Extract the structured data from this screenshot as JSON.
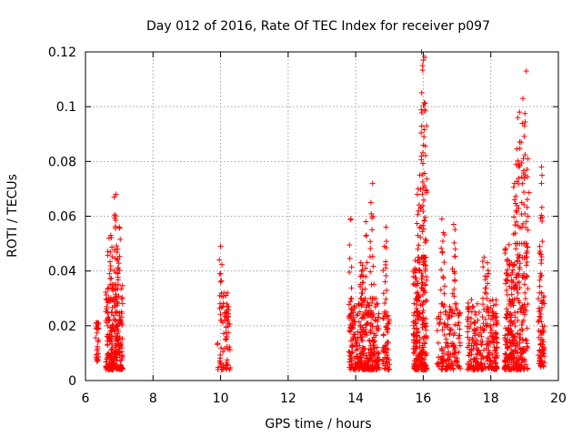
{
  "chart_data": {
    "type": "scatter",
    "title": "Day 012 of 2016, Rate Of TEC Index for receiver p097",
    "xlabel": "GPS time / hours",
    "ylabel": "ROTI / TECUs",
    "xlim": [
      6,
      20
    ],
    "ylim": [
      0,
      0.12
    ],
    "xticks": [
      6,
      8,
      10,
      12,
      14,
      16,
      18,
      20
    ],
    "yticks": [
      0,
      0.02,
      0.04,
      0.06,
      0.08,
      0.1,
      0.12
    ],
    "xtick_labels": [
      "6",
      "8",
      "10",
      "12",
      "14",
      "16",
      "18",
      "20"
    ],
    "ytick_labels": [
      "0",
      "0.02",
      "0.04",
      "0.06",
      "0.08",
      "0.1",
      "0.12"
    ],
    "grid": true,
    "marker": "+",
    "color": "#ff0000",
    "series": [
      {
        "name": "ROTI",
        "clusters": [
          {
            "x": [
              6.3,
              6.4
            ],
            "y": [
              0.007,
              0.021
            ],
            "n": 25,
            "peaks": [
              [
                6.35,
                0.021
              ]
            ]
          },
          {
            "x": [
              6.6,
              7.1
            ],
            "y": [
              0.004,
              0.035
            ],
            "n": 260,
            "peaks": [
              [
                6.85,
                0.067
              ],
              [
                6.9,
                0.068
              ],
              [
                6.7,
                0.052
              ],
              [
                6.75,
                0.053
              ],
              [
                7.0,
                0.056
              ],
              [
                6.95,
                0.048
              ]
            ]
          },
          {
            "x": [
              9.9,
              10.3
            ],
            "y": [
              0.004,
              0.022
            ],
            "n": 45,
            "peaks": [
              [
                10.0,
                0.049
              ],
              [
                10.0,
                0.039
              ],
              [
                10.2,
                0.032
              ],
              [
                10.1,
                0.032
              ],
              [
                10.2,
                0.027
              ]
            ]
          },
          {
            "x": [
              13.8,
              14.7
            ],
            "y": [
              0.004,
              0.03
            ],
            "n": 320,
            "peaks": [
              [
                13.85,
                0.059
              ],
              [
                14.3,
                0.058
              ],
              [
                14.45,
                0.065
              ],
              [
                14.5,
                0.072
              ],
              [
                14.15,
                0.043
              ],
              [
                14.2,
                0.042
              ]
            ]
          },
          {
            "x": [
              14.8,
              15.0
            ],
            "y": [
              0.004,
              0.025
            ],
            "n": 60,
            "peaks": [
              [
                14.9,
                0.056
              ],
              [
                14.85,
                0.049
              ]
            ]
          },
          {
            "x": [
              15.7,
              16.1
            ],
            "y": [
              0.004,
              0.045
            ],
            "n": 230,
            "peaks": [
              [
                15.95,
                0.12
              ],
              [
                16.0,
                0.117
              ],
              [
                16.05,
                0.118
              ],
              [
                15.98,
                0.115
              ],
              [
                16.05,
                0.099
              ],
              [
                16.1,
                0.093
              ],
              [
                16.02,
                0.089
              ],
              [
                15.9,
                0.075
              ],
              [
                15.85,
                0.07
              ]
            ]
          },
          {
            "x": [
              16.4,
              17.1
            ],
            "y": [
              0.004,
              0.028
            ],
            "n": 140,
            "peaks": [
              [
                16.55,
                0.059
              ],
              [
                16.9,
                0.057
              ],
              [
                16.6,
                0.054
              ],
              [
                16.95,
                0.048
              ]
            ]
          },
          {
            "x": [
              17.3,
              18.2
            ],
            "y": [
              0.004,
              0.03
            ],
            "n": 260,
            "peaks": [
              [
                17.8,
                0.045
              ],
              [
                17.9,
                0.043
              ]
            ]
          },
          {
            "x": [
              18.4,
              19.1
            ],
            "y": [
              0.004,
              0.05
            ],
            "n": 330,
            "peaks": [
              [
                19.05,
                0.113
              ],
              [
                18.95,
                0.103
              ],
              [
                18.85,
                0.098
              ],
              [
                18.8,
                0.096
              ],
              [
                19.0,
                0.093
              ],
              [
                18.9,
                0.087
              ],
              [
                19.1,
                0.081
              ],
              [
                18.75,
                0.079
              ],
              [
                18.7,
                0.072
              ]
            ]
          },
          {
            "x": [
              19.4,
              19.6
            ],
            "y": [
              0.005,
              0.032
            ],
            "n": 70,
            "peaks": [
              [
                19.5,
                0.078
              ],
              [
                19.5,
                0.072
              ],
              [
                19.45,
                0.049
              ]
            ]
          }
        ]
      }
    ]
  }
}
